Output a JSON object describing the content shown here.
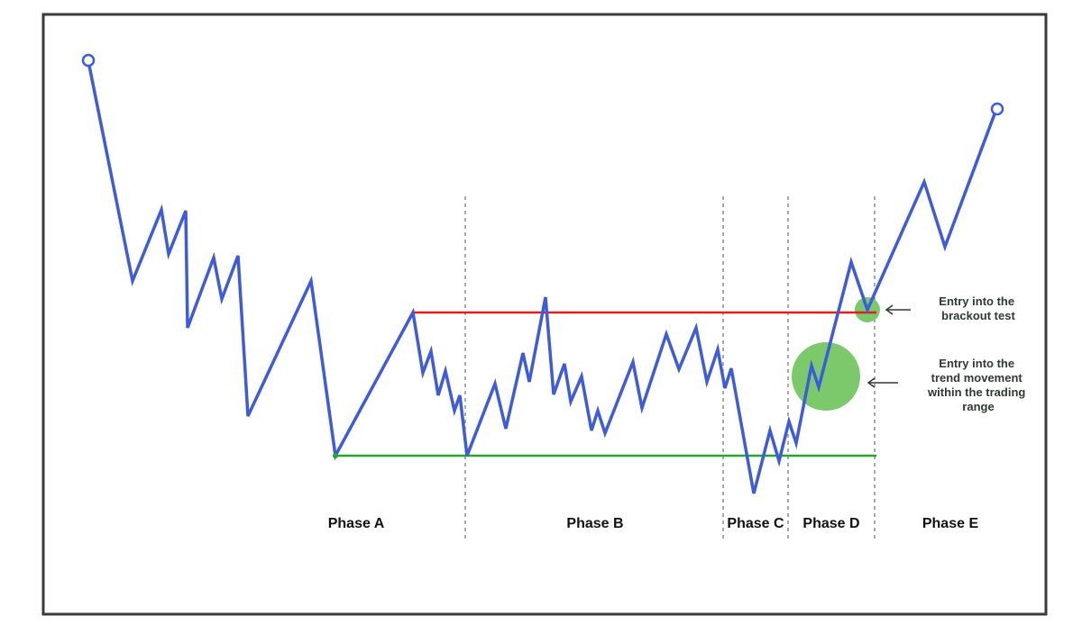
{
  "diagram": {
    "phases": [
      {
        "id": "a",
        "label": "Phase A"
      },
      {
        "id": "b",
        "label": "Phase B"
      },
      {
        "id": "c",
        "label": "Phase C"
      },
      {
        "id": "d",
        "label": "Phase D"
      },
      {
        "id": "e",
        "label": "Phase E"
      }
    ],
    "annotations": {
      "breakout_test": [
        "Entry into the",
        "brackout test"
      ],
      "trend_movement": [
        "Entry into the",
        "trend movement",
        "within the trading",
        "range"
      ]
    },
    "colors": {
      "price_line": "#3d5be0",
      "resistance": "#e0201e",
      "support": "#22a82a",
      "entry_highlight": "#7cc96b",
      "frame": "#3a3a3a"
    }
  }
}
